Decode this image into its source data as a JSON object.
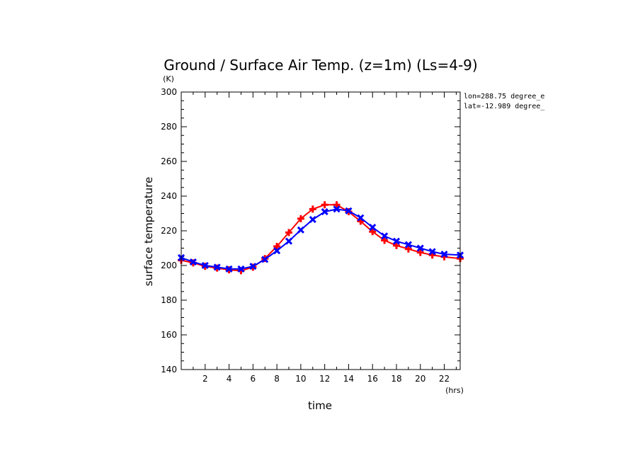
{
  "chart_data": {
    "type": "line",
    "title": "Ground / Surface Air Temp. (z=1m) (Ls=4-9)",
    "xlabel": "time",
    "ylabel": "surface temperature",
    "x_unit": "(hrs)",
    "y_unit": "(K)",
    "xlim": [
      0,
      23.33
    ],
    "ylim": [
      140,
      300
    ],
    "x_ticks": [
      2,
      4,
      6,
      8,
      10,
      12,
      14,
      16,
      18,
      20,
      22
    ],
    "y_ticks": [
      140,
      160,
      180,
      200,
      220,
      240,
      260,
      280,
      300
    ],
    "annotations": [
      "lon=288.75 degree_e",
      "lat=-12.989 degree_"
    ],
    "grid": false,
    "x": [
      0.0,
      1.0,
      2.0,
      3.0,
      4.0,
      5.0,
      6.0,
      7.0,
      8.0,
      9.0,
      10.0,
      11.0,
      12.0,
      13.0,
      14.0,
      15.0,
      16.0,
      17.0,
      18.0,
      19.0,
      20.0,
      21.0,
      22.0,
      23.33
    ],
    "series": [
      {
        "color": "#ff0000",
        "marker": "plus",
        "values": [
          203,
          201.5,
          199.5,
          198.5,
          197.5,
          197,
          199,
          204,
          211,
          219,
          227,
          232.5,
          235,
          235,
          231,
          225.5,
          219.5,
          214.5,
          211.5,
          209.5,
          207.5,
          206,
          205,
          204
        ]
      },
      {
        "color": "#0000ff",
        "marker": "x",
        "values": [
          204.5,
          202,
          200,
          199,
          198,
          198,
          199.5,
          203.5,
          208.5,
          214,
          220.5,
          226.5,
          231,
          232.5,
          231.5,
          227.5,
          222,
          217,
          214,
          212,
          210,
          208,
          206.5,
          206
        ]
      }
    ]
  }
}
